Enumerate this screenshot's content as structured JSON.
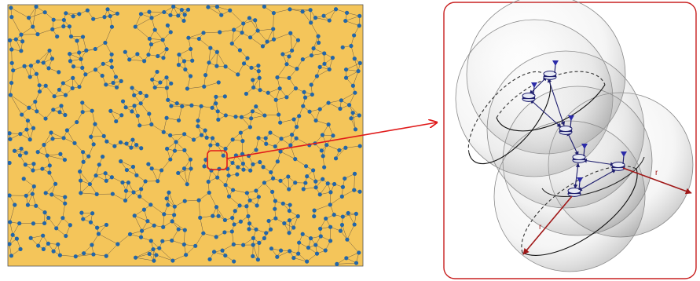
{
  "network_panel": {
    "background_color": "#f4c55a",
    "node_color": "#2366a8",
    "edge_color": "#6b5a43",
    "node_count": 620
  },
  "zoom_highlight": {
    "color": "#e01a1a"
  },
  "detail_panel": {
    "border_color": "#c82020",
    "sphere_shade": "#b9b9b9",
    "node_color": "#1f1f6e",
    "radius_arrow_color": "#a01818",
    "radius_labels": [
      "r",
      "r"
    ]
  }
}
